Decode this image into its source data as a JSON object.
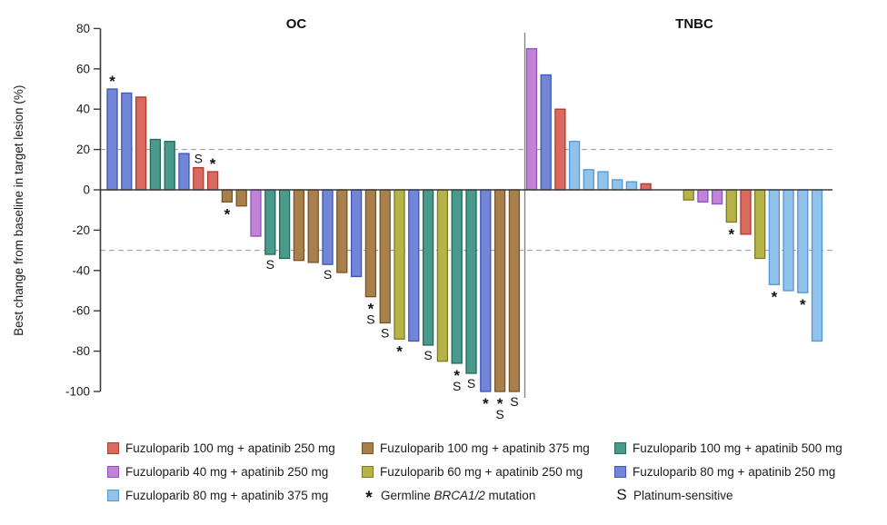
{
  "chart_data": {
    "type": "bar",
    "variant": "waterfall",
    "title": "",
    "ylabel": "Best change from baseline in target lesion (%)",
    "xlabel": "",
    "ylim": [
      -100,
      80
    ],
    "yticks": [
      80,
      60,
      40,
      20,
      0,
      -20,
      -40,
      -60,
      -80,
      -100
    ],
    "reference_lines": [
      20,
      -30
    ],
    "grid": false,
    "mark_meanings": {
      "*": "Germline BRCA1/2 mutation",
      "S": "Platinum-sensitive"
    },
    "colors": {
      "red": {
        "fill": "#DA6A60",
        "stroke": "#AB3A30"
      },
      "orchid": {
        "fill": "#C083D8",
        "stroke": "#9351BC"
      },
      "lightblue": {
        "fill": "#92C2E9",
        "stroke": "#4E97DD"
      },
      "brown": {
        "fill": "#A9804D",
        "stroke": "#775526"
      },
      "yellow": {
        "fill": "#B6B348",
        "stroke": "#7E7C20"
      },
      "teal": {
        "fill": "#4A9A8C",
        "stroke": "#23695C"
      },
      "royal": {
        "fill": "#7286D8",
        "stroke": "#4053B8"
      }
    },
    "panels": [
      {
        "title": "OC",
        "bars": [
          {
            "value": 50,
            "color": "royal",
            "mark": "*"
          },
          {
            "value": 48,
            "color": "royal"
          },
          {
            "value": 46,
            "color": "red"
          },
          {
            "value": 25,
            "color": "teal"
          },
          {
            "value": 24,
            "color": "teal"
          },
          {
            "value": 18,
            "color": "royal"
          },
          {
            "value": 11,
            "color": "red",
            "mark": "S"
          },
          {
            "value": 9,
            "color": "red",
            "mark": "*"
          },
          {
            "value": -6,
            "color": "brown",
            "mark": "*"
          },
          {
            "value": -8,
            "color": "brown"
          },
          {
            "value": -23,
            "color": "orchid"
          },
          {
            "value": -32,
            "color": "teal",
            "mark": "S"
          },
          {
            "value": -34,
            "color": "teal"
          },
          {
            "value": -35,
            "color": "brown"
          },
          {
            "value": -36,
            "color": "brown"
          },
          {
            "value": -37,
            "color": "royal",
            "mark": "S"
          },
          {
            "value": -41,
            "color": "brown"
          },
          {
            "value": -43,
            "color": "royal"
          },
          {
            "value": -53,
            "color": "brown",
            "mark": "*S"
          },
          {
            "value": -66,
            "color": "brown",
            "mark": "S"
          },
          {
            "value": -74,
            "color": "yellow",
            "mark": "*"
          },
          {
            "value": -75,
            "color": "royal"
          },
          {
            "value": -77,
            "color": "teal",
            "mark": "S"
          },
          {
            "value": -85,
            "color": "yellow"
          },
          {
            "value": -86,
            "color": "teal",
            "mark": "*S"
          },
          {
            "value": -91,
            "color": "teal",
            "mark": "S"
          },
          {
            "value": -100,
            "color": "royal",
            "mark": "*"
          },
          {
            "value": -100,
            "color": "brown",
            "mark": "*S"
          },
          {
            "value": -100,
            "color": "brown",
            "mark": "S"
          }
        ]
      },
      {
        "title": "TNBC",
        "bars": [
          {
            "value": 70,
            "color": "orchid"
          },
          {
            "value": 57,
            "color": "royal"
          },
          {
            "value": 40,
            "color": "red"
          },
          {
            "value": 24,
            "color": "lightblue"
          },
          {
            "value": 10,
            "color": "lightblue"
          },
          {
            "value": 9,
            "color": "lightblue"
          },
          {
            "value": 5,
            "color": "lightblue"
          },
          {
            "value": 4,
            "color": "lightblue"
          },
          {
            "value": 3,
            "color": "red"
          },
          {
            "spacer": true
          },
          {
            "spacer": true
          },
          {
            "value": -5,
            "color": "yellow"
          },
          {
            "value": -6,
            "color": "orchid"
          },
          {
            "value": -7,
            "color": "orchid"
          },
          {
            "value": -16,
            "color": "yellow",
            "mark": "*"
          },
          {
            "value": -22,
            "color": "red"
          },
          {
            "value": -34,
            "color": "yellow"
          },
          {
            "value": -47,
            "color": "lightblue",
            "mark": "*"
          },
          {
            "value": -50,
            "color": "lightblue"
          },
          {
            "value": -51,
            "color": "lightblue",
            "mark": "*"
          },
          {
            "value": -75,
            "color": "lightblue"
          }
        ]
      }
    ],
    "legend_items": [
      {
        "key": "red",
        "label": "Fuzuloparib 100 mg + apatinib 250 mg"
      },
      {
        "key": "brown",
        "label": "Fuzuloparib 100 mg + apatinib 375 mg"
      },
      {
        "key": "teal",
        "label": "Fuzuloparib 100 mg + apatinib 500 mg"
      },
      {
        "key": "orchid",
        "label": "Fuzuloparib 40 mg + apatinib 250 mg"
      },
      {
        "key": "yellow",
        "label": "Fuzuloparib 60 mg + apatinib 250 mg"
      },
      {
        "key": "royal",
        "label": "Fuzuloparib 80 mg + apatinib 250 mg"
      },
      {
        "key": "lightblue",
        "label": "Fuzuloparib 80 mg + apatinib 375 mg"
      },
      {
        "symbol": "*",
        "label_prefix": "Germline ",
        "label_italic": "BRCA1/2",
        "label_suffix": " mutation"
      },
      {
        "symbol": "S",
        "label": "Platinum-sensitive"
      }
    ]
  }
}
